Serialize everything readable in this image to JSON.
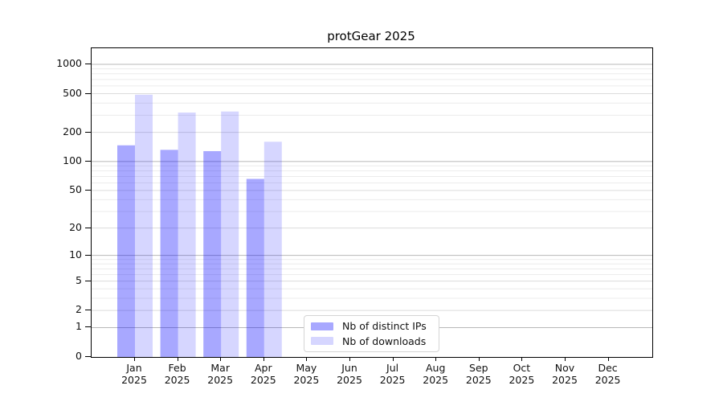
{
  "chart_data": {
    "type": "bar",
    "title": "protGear 2025",
    "categories": [
      "Jan",
      "Feb",
      "Mar",
      "Apr",
      "May",
      "Jun",
      "Jul",
      "Aug",
      "Sep",
      "Oct",
      "Nov",
      "Dec"
    ],
    "x_tick_second_line": "2025",
    "series": [
      {
        "name": "Nb of distinct IPs",
        "color": "#0000ff",
        "opacity": 0.34,
        "values": [
          147,
          132,
          128,
          66,
          0,
          0,
          0,
          0,
          0,
          0,
          0,
          0
        ]
      },
      {
        "name": "Nb of downloads",
        "color": "#0000ff",
        "opacity": 0.16,
        "values": [
          488,
          320,
          328,
          160,
          0,
          0,
          0,
          0,
          0,
          0,
          0,
          0
        ]
      }
    ],
    "xlabel": "",
    "ylabel": "",
    "yscale": "log1p",
    "yticks": [
      0,
      1,
      2,
      5,
      10,
      20,
      50,
      100,
      200,
      500,
      1000
    ],
    "minor_yticks": [
      3,
      4,
      6,
      7,
      8,
      9,
      30,
      40,
      60,
      70,
      80,
      90,
      300,
      400,
      600,
      700,
      800,
      900
    ],
    "ylim": [
      0,
      1465
    ],
    "grid": "both",
    "legend_position": "lower center"
  },
  "colors": {
    "background": "#ffffff",
    "axis_spine": "#000000",
    "tick_label": "#111111",
    "grid_power10": "#b8b8b8",
    "grid_major": "#dcdcdc",
    "grid_minor": "#ececec",
    "legend_border": "#d5d5d5",
    "legend_bg": "#ffffff"
  }
}
